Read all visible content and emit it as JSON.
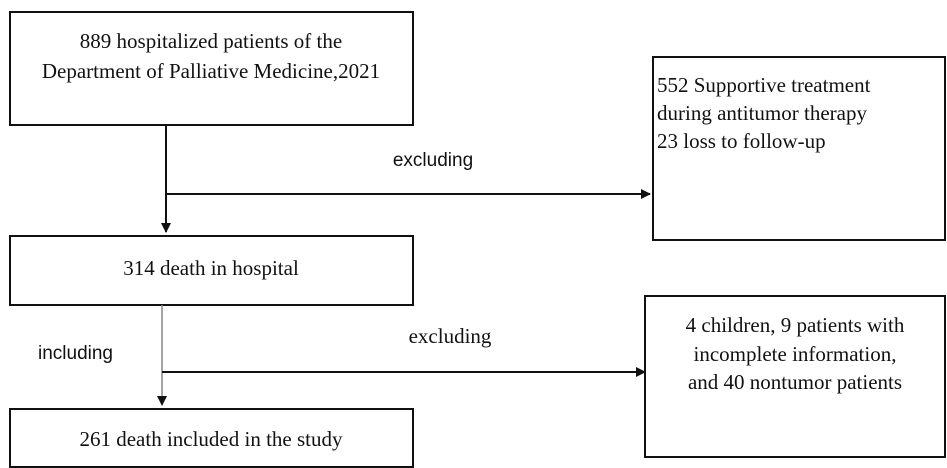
{
  "nodes": [
    {
      "lines": [
        "889 hospitalized patients of the",
        "Department of Palliative Medicine,2021"
      ]
    },
    {
      "lines": [
        "552 Supportive treatment",
        "during antitumor therapy",
        "23 loss to follow-up"
      ]
    },
    {
      "lines": [
        "314 death in hospital"
      ]
    },
    {
      "lines": [
        "4 children, 9 patients with",
        "incomplete information,",
        "and 40 nontumor patients"
      ]
    },
    {
      "lines": [
        "261 death included in the study"
      ]
    }
  ],
  "edges": [
    {
      "label": "excluding"
    },
    {
      "label": "including"
    },
    {
      "label": "excluding"
    }
  ]
}
